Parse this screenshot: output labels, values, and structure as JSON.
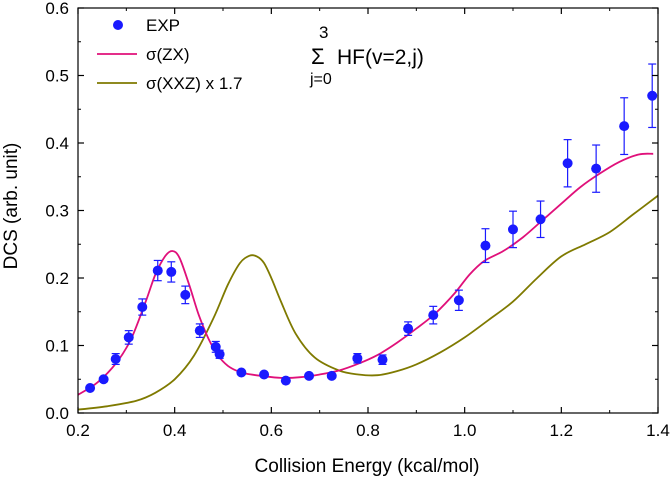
{
  "chart_data": {
    "type": "scatter",
    "xlabel": "Collision Energy (kcal/mol)",
    "ylabel": "DCS (arb. unit)",
    "xlim": [
      0.2,
      1.4
    ],
    "ylim": [
      0.0,
      0.6
    ],
    "xticks": [
      "0.2",
      "0.4",
      "0.6",
      "0.8",
      "1.0",
      "1.2",
      "1.4"
    ],
    "yticks": [
      "0.0",
      "0.1",
      "0.2",
      "0.3",
      "0.4",
      "0.5",
      "0.6"
    ],
    "legend_position": "top-left",
    "annotation": {
      "sum_symbol": "Σ",
      "upper_limit": "3",
      "lower_limit": "j=0",
      "expression": "HF(v=2,j)"
    },
    "series": [
      {
        "name": "EXP",
        "kind": "points",
        "color": "#1a1aff",
        "points": [
          {
            "x": 0.225,
            "y": 0.037,
            "err": 0.0
          },
          {
            "x": 0.253,
            "y": 0.05,
            "err": 0.0
          },
          {
            "x": 0.278,
            "y": 0.08,
            "err": 0.008
          },
          {
            "x": 0.305,
            "y": 0.112,
            "err": 0.01
          },
          {
            "x": 0.333,
            "y": 0.157,
            "err": 0.012
          },
          {
            "x": 0.365,
            "y": 0.211,
            "err": 0.015
          },
          {
            "x": 0.393,
            "y": 0.209,
            "err": 0.015
          },
          {
            "x": 0.422,
            "y": 0.175,
            "err": 0.013
          },
          {
            "x": 0.452,
            "y": 0.122,
            "err": 0.01
          },
          {
            "x": 0.485,
            "y": 0.098,
            "err": 0.008
          },
          {
            "x": 0.493,
            "y": 0.087,
            "err": 0.006
          },
          {
            "x": 0.538,
            "y": 0.06,
            "err": 0.0
          },
          {
            "x": 0.585,
            "y": 0.057,
            "err": 0.0
          },
          {
            "x": 0.63,
            "y": 0.048,
            "err": 0.0
          },
          {
            "x": 0.678,
            "y": 0.055,
            "err": 0.0
          },
          {
            "x": 0.725,
            "y": 0.055,
            "err": 0.0
          },
          {
            "x": 0.778,
            "y": 0.081,
            "err": 0.007
          },
          {
            "x": 0.83,
            "y": 0.079,
            "err": 0.007
          },
          {
            "x": 0.883,
            "y": 0.125,
            "err": 0.01
          },
          {
            "x": 0.935,
            "y": 0.145,
            "err": 0.013
          },
          {
            "x": 0.988,
            "y": 0.167,
            "err": 0.015
          },
          {
            "x": 1.043,
            "y": 0.248,
            "err": 0.025
          },
          {
            "x": 1.1,
            "y": 0.272,
            "err": 0.027
          },
          {
            "x": 1.157,
            "y": 0.287,
            "err": 0.027
          },
          {
            "x": 1.213,
            "y": 0.37,
            "err": 0.035
          },
          {
            "x": 1.272,
            "y": 0.362,
            "err": 0.035
          },
          {
            "x": 1.33,
            "y": 0.425,
            "err": 0.042
          },
          {
            "x": 1.388,
            "y": 0.47,
            "err": 0.047
          }
        ]
      },
      {
        "name": "σ(ZX)",
        "kind": "line",
        "color": "#e0107a",
        "x": [
          0.2,
          0.24,
          0.28,
          0.31,
          0.34,
          0.36,
          0.38,
          0.395,
          0.41,
          0.43,
          0.45,
          0.47,
          0.49,
          0.51,
          0.53,
          0.55,
          0.58,
          0.62,
          0.66,
          0.7,
          0.74,
          0.78,
          0.82,
          0.86,
          0.9,
          0.94,
          0.98,
          1.01,
          1.04,
          1.08,
          1.12,
          1.16,
          1.2,
          1.24,
          1.28,
          1.32,
          1.36,
          1.39
        ],
        "y": [
          0.027,
          0.045,
          0.075,
          0.11,
          0.165,
          0.205,
          0.232,
          0.24,
          0.23,
          0.19,
          0.145,
          0.11,
          0.085,
          0.07,
          0.062,
          0.058,
          0.055,
          0.052,
          0.053,
          0.057,
          0.063,
          0.073,
          0.086,
          0.104,
          0.125,
          0.148,
          0.178,
          0.205,
          0.225,
          0.24,
          0.26,
          0.285,
          0.31,
          0.335,
          0.355,
          0.372,
          0.383,
          0.384
        ]
      },
      {
        "name": "σ(XXZ)  x 1.7",
        "kind": "line",
        "color": "#7f7a00",
        "x": [
          0.2,
          0.26,
          0.32,
          0.36,
          0.4,
          0.44,
          0.48,
          0.51,
          0.535,
          0.555,
          0.57,
          0.585,
          0.6,
          0.62,
          0.65,
          0.69,
          0.74,
          0.78,
          0.82,
          0.86,
          0.9,
          0.95,
          1.0,
          1.05,
          1.1,
          1.15,
          1.2,
          1.25,
          1.3,
          1.35,
          1.4
        ],
        "y": [
          0.005,
          0.01,
          0.018,
          0.03,
          0.05,
          0.085,
          0.14,
          0.19,
          0.222,
          0.233,
          0.232,
          0.222,
          0.2,
          0.165,
          0.118,
          0.082,
          0.063,
          0.057,
          0.056,
          0.062,
          0.072,
          0.09,
          0.112,
          0.138,
          0.165,
          0.2,
          0.232,
          0.25,
          0.268,
          0.295,
          0.322
        ]
      }
    ]
  }
}
